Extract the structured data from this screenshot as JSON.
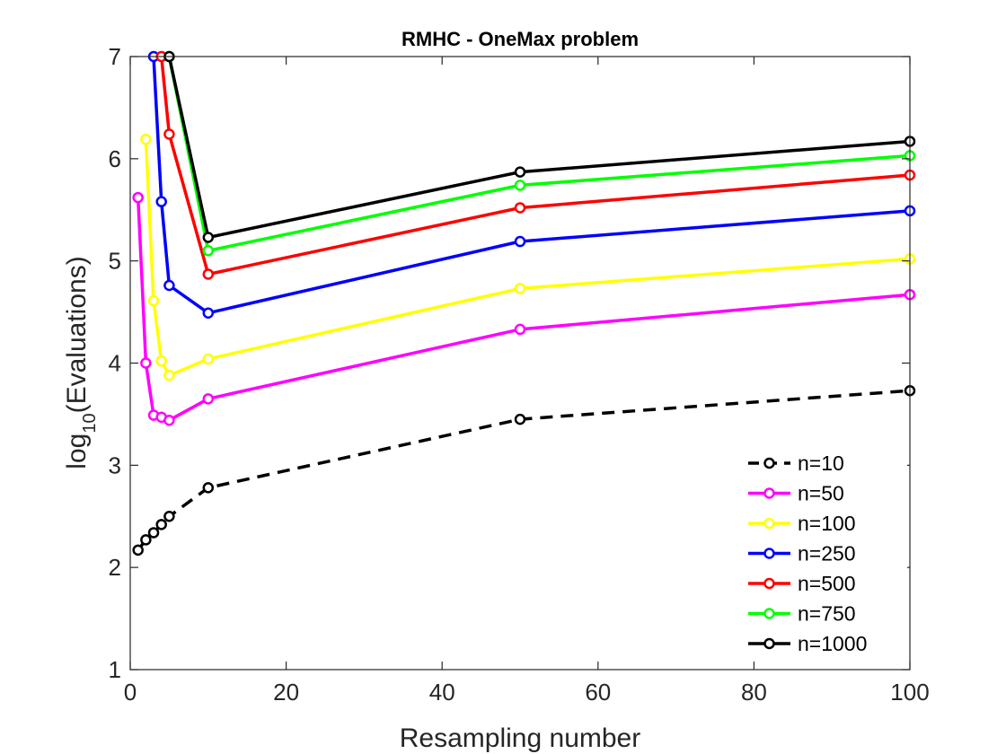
{
  "chart_data": {
    "type": "line",
    "title": "RMHC - OneMax problem",
    "xlabel": "Resampling number",
    "ylabel": {
      "prefix": "log",
      "subscript": "10",
      "suffix": "(Evaluations)"
    },
    "xlim": [
      0,
      100
    ],
    "ylim": [
      1,
      7
    ],
    "xticks": [
      0,
      20,
      40,
      60,
      80,
      100
    ],
    "yticks": [
      1,
      2,
      3,
      4,
      5,
      6,
      7
    ],
    "grid": false,
    "legend_position": "bottom-right",
    "series": [
      {
        "name": "n=10",
        "color": "#000000",
        "dashed": true,
        "x": [
          1,
          2,
          3,
          4,
          5,
          10,
          50,
          100
        ],
        "y": [
          2.17,
          2.27,
          2.34,
          2.42,
          2.5,
          2.78,
          3.45,
          3.73
        ]
      },
      {
        "name": "n=50",
        "color": "#ff00ff",
        "dashed": false,
        "x": [
          1,
          2,
          3,
          4,
          5,
          10,
          50,
          100
        ],
        "y": [
          5.62,
          4.0,
          3.49,
          3.47,
          3.44,
          3.65,
          4.33,
          4.67
        ]
      },
      {
        "name": "n=100",
        "color": "#ffff00",
        "dashed": false,
        "x": [
          2,
          3,
          4,
          5,
          10,
          50,
          100
        ],
        "y": [
          6.19,
          4.61,
          4.02,
          3.88,
          4.04,
          4.73,
          5.02
        ]
      },
      {
        "name": "n=250",
        "color": "#0000ff",
        "dashed": false,
        "x": [
          3,
          4,
          5,
          10,
          50,
          100
        ],
        "y": [
          7.0,
          5.58,
          4.76,
          4.49,
          5.19,
          5.49
        ]
      },
      {
        "name": "n=500",
        "color": "#ff0000",
        "dashed": false,
        "x": [
          4,
          5,
          10,
          50,
          100
        ],
        "y": [
          7.0,
          6.24,
          4.87,
          5.52,
          5.84
        ]
      },
      {
        "name": "n=750",
        "color": "#00ff00",
        "dashed": false,
        "x": [
          5,
          10,
          50,
          100
        ],
        "y": [
          7.0,
          5.1,
          5.74,
          6.03
        ]
      },
      {
        "name": "n=1000",
        "color": "#000000",
        "dashed": false,
        "x": [
          5,
          10,
          50,
          100
        ],
        "y": [
          7.0,
          5.23,
          5.87,
          6.17
        ]
      }
    ]
  }
}
